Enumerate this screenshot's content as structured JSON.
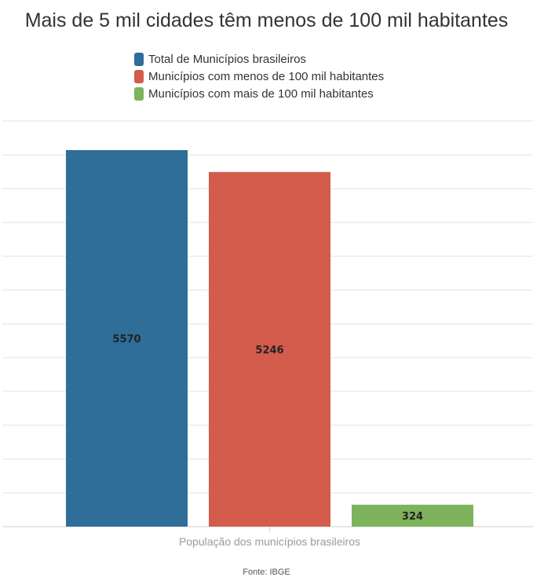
{
  "chart_data": {
    "type": "bar",
    "title": "Mais de 5 mil cidades têm menos de 100 mil habitantes",
    "xlabel": "População dos municípios brasileiros",
    "ylabel": "",
    "categories": [
      "População dos municípios brasileiros"
    ],
    "series": [
      {
        "name": "Total de Municípios brasileiros",
        "values": [
          5570
        ],
        "color": "#2e6e99"
      },
      {
        "name": "Municípios com menos de 100 mil habitantes",
        "values": [
          5246
        ],
        "color": "#d35c4d"
      },
      {
        "name": "Municípios com mais de 100 mil habitantes",
        "values": [
          324
        ],
        "color": "#7db35a"
      }
    ],
    "ylim": [
      0,
      6000
    ],
    "grid": true,
    "legend_position": "top-center",
    "data_labels": true,
    "y_tick_labels_visible": false
  },
  "source": "Fonte: IBGE"
}
